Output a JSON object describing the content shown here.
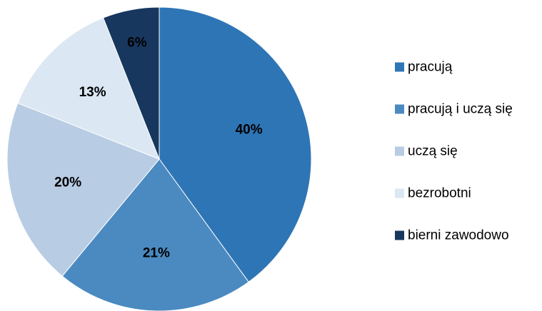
{
  "chart_data": {
    "type": "pie",
    "title": "",
    "categories": [
      "pracują",
      "pracują i uczą się",
      "uczą się",
      "bezrobotni",
      "bierni zawodowo"
    ],
    "values": [
      40,
      21,
      20,
      13,
      6
    ],
    "labels": [
      "40%",
      "21%",
      "20%",
      "13%",
      "6%"
    ],
    "colors": [
      "#2e75b6",
      "#4a8ac0",
      "#b8cce4",
      "#dbe7f3",
      "#17375e"
    ],
    "legend_position": "right",
    "start_angle_deg": 0,
    "direction": "clockwise"
  }
}
